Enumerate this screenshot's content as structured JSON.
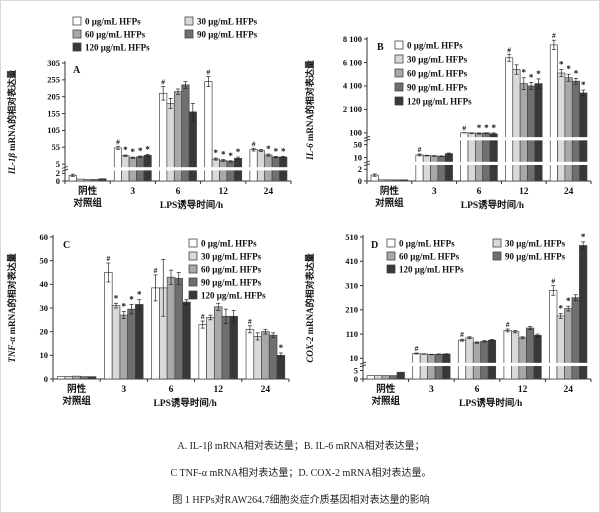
{
  "figure": {
    "captions": {
      "line1": "A. IL-1β mRNA相对表达量；B. IL-6 mRNA相对表达量；",
      "line2": "C TNF-α mRNA相对表达量；D. COX-2 mRNA相对表达量。",
      "title": "图 1 HFPs对RAW264.7细胞炎症介质基因相对表达量的影响"
    }
  },
  "legend": {
    "entries": [
      {
        "label": "0 μg/mL HFPs",
        "color": "#ffffff"
      },
      {
        "label": "30 μg/mL HFPs",
        "color": "#d9d9d9"
      },
      {
        "label": "60 μg/mL HFPs",
        "color": "#a8a8a8"
      },
      {
        "label": "90 μg/mL HFPs",
        "color": "#6f6f6f"
      },
      {
        "label": "120 μg/mL HFPs",
        "color": "#383838"
      }
    ]
  },
  "chart_data": [
    {
      "type": "bar",
      "panel": "A",
      "ylabel_gene": "IL-1β",
      "ylabel_rest": " mRNA的相对表达量",
      "xlabel": "LPS诱导时间/h",
      "yticks": [
        0,
        2,
        5,
        55,
        105,
        155,
        205,
        255,
        305
      ],
      "ytick_labels": [
        "0",
        "2",
        "5",
        "55",
        "105",
        "155",
        "205",
        "255",
        "305"
      ],
      "ylim": [
        0,
        305
      ],
      "breaks": [
        [
          2,
          5
        ]
      ],
      "groups": [
        {
          "label": "阴性对照组",
          "values": [
            1.5,
            0.5,
            0.4,
            0.4,
            0.6
          ],
          "errs": [
            0.3,
            0,
            0,
            0,
            0
          ],
          "marks": [
            "",
            "",
            "",
            "",
            ""
          ]
        },
        {
          "label": "3",
          "values": [
            53,
            30,
            24,
            27,
            31
          ],
          "errs": [
            4,
            2,
            2,
            2,
            3
          ],
          "marks": [
            "#",
            "*",
            "*",
            "*",
            "*"
          ]
        },
        {
          "label": "6",
          "values": [
            215,
            185,
            220,
            240,
            160
          ],
          "errs": [
            20,
            15,
            8,
            10,
            25
          ],
          "marks": [
            "#",
            "",
            "",
            "",
            ""
          ]
        },
        {
          "label": "12",
          "values": [
            250,
            20,
            16,
            13,
            22
          ],
          "errs": [
            15,
            3,
            3,
            2,
            4
          ],
          "marks": [
            "#",
            "*",
            "*",
            "*",
            "*"
          ]
        },
        {
          "label": "24",
          "values": [
            48,
            45,
            32,
            26,
            26
          ],
          "errs": [
            4,
            3,
            3,
            2,
            2
          ],
          "marks": [
            "#",
            "",
            "*",
            "*",
            "*"
          ]
        }
      ]
    },
    {
      "type": "bar",
      "panel": "B",
      "ylabel_gene": "IL-6",
      "ylabel_rest": " mRNA的相对表达量",
      "xlabel": "LPS诱导时间/h",
      "yticks": [
        0,
        2,
        10,
        50,
        100,
        2100,
        4100,
        6100,
        8100
      ],
      "ytick_labels": [
        "0",
        "2",
        "10",
        "50",
        "100",
        "2 100",
        "4 100",
        "6 100",
        "8 100"
      ],
      "ylim": [
        0,
        8100
      ],
      "breaks": [
        [
          2,
          10
        ],
        [
          50,
          100
        ]
      ],
      "groups": [
        {
          "label": "阴性对照组",
          "values": [
            1,
            0.2,
            0.2,
            0.2,
            0.2
          ],
          "errs": [
            0.2,
            0,
            0,
            0,
            0
          ],
          "marks": [
            "",
            "",
            "",
            "",
            ""
          ]
        },
        {
          "label": "3",
          "values": [
            18,
            16,
            15,
            14,
            22
          ],
          "errs": [
            3,
            1,
            1,
            1,
            2
          ],
          "marks": [
            "#",
            "",
            "",
            "",
            ""
          ]
        },
        {
          "label": "6",
          "values": [
            108,
            100,
            98,
            100,
            96
          ],
          "errs": [
            5,
            3,
            3,
            3,
            4
          ],
          "marks": [
            "#",
            "",
            "*",
            "*",
            "*"
          ]
        },
        {
          "label": "12",
          "values": [
            6500,
            5500,
            4300,
            4100,
            4300
          ],
          "errs": [
            300,
            400,
            500,
            300,
            400
          ],
          "marks": [
            "#",
            "",
            "*",
            "*",
            "*"
          ]
        },
        {
          "label": "24",
          "values": [
            7600,
            5200,
            4800,
            4500,
            3500
          ],
          "errs": [
            400,
            300,
            300,
            250,
            250
          ],
          "marks": [
            "#",
            "*",
            "*",
            "*",
            "*"
          ]
        }
      ]
    },
    {
      "type": "bar",
      "panel": "C",
      "ylabel_gene": "TNF-α",
      "ylabel_rest": " mRNA的相对表达量",
      "xlabel": "LPS诱导时间/h",
      "yticks": [
        0,
        10,
        20,
        30,
        40,
        50,
        60
      ],
      "ytick_labels": [
        "0",
        "10",
        "20",
        "30",
        "40",
        "50",
        "60"
      ],
      "ylim": [
        0,
        60
      ],
      "breaks": [],
      "groups": [
        {
          "label": "阴性对照组",
          "values": [
            1,
            1,
            1.2,
            1,
            1
          ],
          "errs": [
            0,
            0,
            0,
            0,
            0
          ],
          "marks": [
            "",
            "",
            "",
            "",
            ""
          ]
        },
        {
          "label": "3",
          "values": [
            45,
            31,
            27,
            29.5,
            31.5
          ],
          "errs": [
            4,
            1,
            1.5,
            2,
            2
          ],
          "marks": [
            "#",
            "*",
            "*",
            "*",
            "*"
          ]
        },
        {
          "label": "6",
          "values": [
            38.5,
            38.5,
            43,
            42.5,
            32.5
          ],
          "errs": [
            5.5,
            12,
            3,
            2.5,
            1
          ],
          "marks": [
            "#",
            "",
            "",
            "",
            ""
          ]
        },
        {
          "label": "12",
          "values": [
            23,
            26,
            30.5,
            26.5,
            26.5
          ],
          "errs": [
            1.5,
            1,
            1.5,
            3,
            2.5
          ],
          "marks": [
            "#",
            "",
            "",
            "",
            ""
          ]
        },
        {
          "label": "24",
          "values": [
            21,
            18,
            20,
            18.5,
            10
          ],
          "errs": [
            1.5,
            1.5,
            1,
            1,
            1
          ],
          "marks": [
            "#",
            "",
            "",
            "",
            "*"
          ]
        }
      ]
    },
    {
      "type": "bar",
      "panel": "D",
      "ylabel_gene": "COX-2",
      "ylabel_rest": " mRNA的相对表达量",
      "xlabel": "LPS诱导时间/h",
      "yticks": [
        0,
        5,
        10,
        110,
        210,
        310,
        410,
        510
      ],
      "ytick_labels": [
        "0",
        "5",
        "10",
        "110",
        "210",
        "310",
        "410",
        "510"
      ],
      "ylim": [
        0,
        510
      ],
      "breaks": [
        [
          5,
          10
        ]
      ],
      "groups": [
        {
          "label": "阴性对照组",
          "values": [
            2,
            2,
            2,
            2,
            4
          ],
          "errs": [
            0,
            0,
            0,
            0,
            0
          ],
          "marks": [
            "",
            "",
            "",
            "",
            ""
          ]
        },
        {
          "label": "3",
          "values": [
            30,
            28,
            26,
            27,
            28
          ],
          "errs": [
            2,
            1,
            1,
            1,
            1
          ],
          "marks": [
            "#",
            "",
            "",
            "",
            ""
          ]
        },
        {
          "label": "6",
          "values": [
            85,
            95,
            75,
            80,
            85
          ],
          "errs": [
            4,
            4,
            3,
            3,
            3
          ],
          "marks": [
            "#",
            "",
            "",
            "",
            ""
          ]
        },
        {
          "label": "12",
          "values": [
            125,
            120,
            95,
            135,
            105
          ],
          "errs": [
            6,
            5,
            4,
            6,
            5
          ],
          "marks": [
            "#",
            "",
            "",
            "",
            ""
          ]
        },
        {
          "label": "24",
          "values": [
            290,
            185,
            215,
            260,
            475
          ],
          "errs": [
            20,
            10,
            10,
            12,
            15
          ],
          "marks": [
            "#",
            "*",
            "*",
            "",
            "*"
          ]
        }
      ]
    }
  ]
}
